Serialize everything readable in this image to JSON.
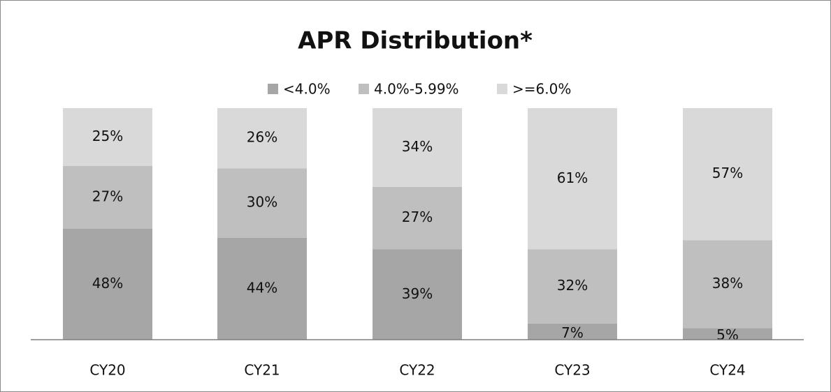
{
  "chart_data": {
    "type": "stacked_bar",
    "title": "APR Distribution*",
    "categories": [
      "CY20",
      "CY21",
      "CY22",
      "CY23",
      "CY24"
    ],
    "series": [
      {
        "name": "<4.0%",
        "color": "#a6a6a6",
        "values": [
          48,
          44,
          39,
          7,
          5
        ],
        "value_labels": [
          "48%",
          "44%",
          "39%",
          "7%",
          "5%"
        ]
      },
      {
        "name": "4.0%-5.99%",
        "color": "#bfbfbf",
        "values": [
          27,
          30,
          27,
          32,
          38
        ],
        "value_labels": [
          "27%",
          "30%",
          "27%",
          "32%",
          "38%"
        ]
      },
      {
        "name": ">=6.0%",
        "color": "#d9d9d9",
        "values": [
          25,
          26,
          34,
          61,
          57
        ],
        "value_labels": [
          "25%",
          "26%",
          "34%",
          "61%",
          "57%"
        ]
      }
    ]
  }
}
